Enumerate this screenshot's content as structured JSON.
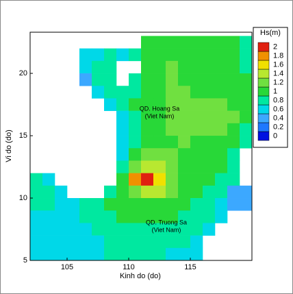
{
  "chart_data": {
    "type": "heatmap",
    "xlabel": "Kinh do (do)",
    "ylabel": "Vi do (do)",
    "xlim": [
      102,
      120
    ],
    "ylim": [
      5,
      23.3
    ],
    "xticks": [
      105,
      110,
      115
    ],
    "yticks": [
      5,
      10,
      15,
      20
    ],
    "x": [
      102,
      103,
      104,
      105,
      106,
      107,
      108,
      109,
      110,
      111,
      112,
      113,
      114,
      115,
      116,
      117,
      118,
      119
    ],
    "y": [
      22,
      21,
      20,
      19,
      18,
      17,
      16,
      15,
      14,
      13,
      12,
      11,
      10,
      9,
      8,
      7,
      6,
      5
    ],
    "values": [
      [
        null,
        null,
        null,
        null,
        null,
        null,
        null,
        null,
        null,
        1.0,
        1.1,
        1.1,
        1.1,
        1.0,
        1.0,
        1.0,
        1.0,
        0.9
      ],
      [
        null,
        null,
        null,
        null,
        0.6,
        0.7,
        0.8,
        0.6,
        0.9,
        1.0,
        1.1,
        1.1,
        1.1,
        1.0,
        1.0,
        1.0,
        1.0,
        0.9
      ],
      [
        null,
        null,
        null,
        null,
        0.6,
        0.8,
        0.9,
        null,
        null,
        1.0,
        1.1,
        1.2,
        1.1,
        1.0,
        1.0,
        1.0,
        1.0,
        0.9
      ],
      [
        null,
        null,
        null,
        null,
        0.5,
        0.8,
        0.9,
        null,
        0.9,
        1.0,
        1.1,
        1.2,
        1.1,
        1.1,
        1.0,
        1.0,
        1.0,
        1.0
      ],
      [
        null,
        null,
        null,
        null,
        null,
        0.7,
        0.8,
        0.9,
        0.9,
        1.0,
        1.1,
        1.2,
        1.2,
        1.1,
        1.1,
        1.1,
        1.0,
        1.0
      ],
      [
        null,
        null,
        null,
        null,
        null,
        null,
        0.6,
        0.8,
        1.0,
        1.1,
        1.1,
        1.2,
        1.2,
        1.2,
        1.3,
        1.3,
        1.1,
        1.0
      ],
      [
        null,
        null,
        null,
        null,
        null,
        null,
        null,
        0.7,
        0.9,
        1.1,
        1.1,
        1.2,
        1.2,
        1.2,
        1.3,
        1.3,
        1.2,
        1.0
      ],
      [
        null,
        null,
        null,
        null,
        null,
        null,
        null,
        0.6,
        0.9,
        1.0,
        1.1,
        1.2,
        1.2,
        1.2,
        1.2,
        1.2,
        1.1,
        0.9
      ],
      [
        null,
        null,
        null,
        null,
        null,
        null,
        null,
        0.6,
        0.9,
        1.0,
        1.1,
        1.1,
        1.2,
        1.1,
        1.1,
        1.1,
        1.0,
        0.8
      ],
      [
        null,
        null,
        null,
        null,
        null,
        null,
        null,
        0.7,
        1.0,
        1.2,
        1.3,
        1.2,
        1.1,
        1.1,
        1.0,
        1.0,
        0.9,
        null
      ],
      [
        null,
        null,
        null,
        null,
        null,
        null,
        null,
        0.9,
        1.3,
        1.5,
        1.5,
        1.3,
        1.1,
        1.0,
        1.0,
        1.0,
        0.8,
        null
      ],
      [
        0.8,
        0.6,
        null,
        null,
        null,
        null,
        null,
        1.0,
        1.8,
        2.0,
        1.6,
        1.3,
        1.1,
        1.0,
        1.0,
        0.9,
        0.9,
        null
      ],
      [
        0.9,
        0.8,
        0.6,
        null,
        null,
        null,
        0.9,
        1.1,
        1.3,
        1.5,
        1.4,
        1.2,
        1.0,
        1.0,
        0.9,
        0.9,
        0.5,
        0.4
      ],
      [
        0.9,
        0.8,
        0.7,
        0.7,
        0.8,
        0.9,
        1.0,
        1.1,
        1.1,
        1.1,
        1.1,
        1.0,
        1.0,
        0.9,
        0.9,
        0.6,
        0.4,
        0.5
      ],
      [
        0.7,
        0.7,
        0.6,
        0.7,
        0.8,
        0.9,
        0.9,
        1.0,
        1.0,
        1.0,
        1.0,
        1.0,
        0.9,
        0.9,
        0.8,
        0.6,
        null,
        null
      ],
      [
        0.6,
        0.6,
        0.6,
        0.6,
        0.7,
        0.8,
        0.8,
        0.9,
        0.9,
        0.9,
        0.9,
        0.9,
        0.8,
        0.8,
        0.6,
        null,
        null,
        null
      ],
      [
        0.6,
        0.6,
        0.6,
        0.6,
        0.7,
        0.7,
        0.8,
        0.8,
        0.8,
        0.8,
        0.8,
        0.8,
        0.8,
        0.7,
        null,
        null,
        null,
        null
      ],
      [
        0.6,
        0.6,
        0.6,
        0.6,
        0.7,
        0.7,
        0.8,
        0.8,
        0.8,
        0.8,
        0.8,
        0.7,
        0.7,
        0.6,
        null,
        null,
        null,
        null
      ]
    ],
    "colorbar_title": "Hs(m)",
    "colorbar_ticks": [
      0,
      0.2,
      0.4,
      0.6,
      0.8,
      1,
      1.2,
      1.4,
      1.6,
      1.8,
      2
    ],
    "colors": [
      "#0010e0",
      "#1e78ff",
      "#3ca8ff",
      "#00d8e8",
      "#00e8a0",
      "#28d838",
      "#70e040",
      "#b8e830",
      "#f0e000",
      "#f09000",
      "#e02010"
    ],
    "annotations": [
      "QD. Hoang Sa",
      "(Viet Nam)",
      "QD. Truong Sa",
      "(Viet Nam)"
    ]
  }
}
